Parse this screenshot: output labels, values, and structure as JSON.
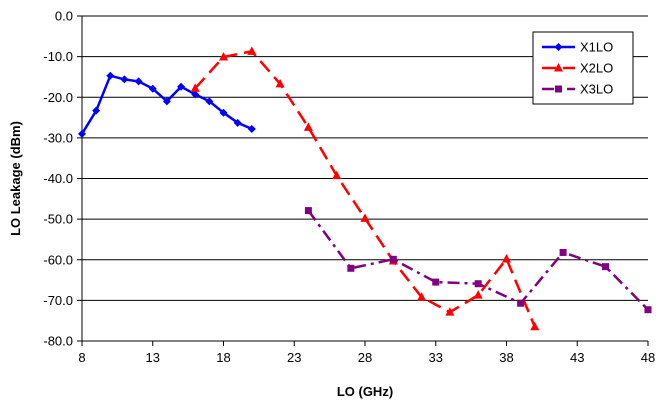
{
  "chart_data": {
    "type": "line",
    "title": "",
    "xlabel": "LO (GHz)",
    "ylabel": "LO Leakage (dBm)",
    "xlim": [
      8,
      48
    ],
    "ylim": [
      -80,
      0
    ],
    "x_ticks": [
      "8",
      "13",
      "18",
      "23",
      "28",
      "33",
      "38",
      "43",
      "48"
    ],
    "y_ticks": [
      "0.0",
      "-10.0",
      "-20.0",
      "-30.0",
      "-40.0",
      "-50.0",
      "-60.0",
      "-70.0",
      "-80.0"
    ],
    "grid": "horizontal",
    "legend_position": "top-right",
    "series": [
      {
        "name": "X1LO",
        "color": "#0000FF",
        "line_style": "solid",
        "marker": "diamond",
        "x": [
          8,
          9,
          10,
          11,
          12,
          13,
          14,
          15,
          16,
          17,
          18,
          19,
          20
        ],
        "y": [
          -29.0,
          -23.3,
          -14.7,
          -15.6,
          -16.1,
          -17.9,
          -21.0,
          -17.4,
          -19.3,
          -21.0,
          -23.8,
          -26.3,
          -27.8
        ]
      },
      {
        "name": "X2LO",
        "color": "#FF0000",
        "line_style": "dashed",
        "marker": "triangle",
        "x": [
          16,
          18,
          20,
          22,
          24,
          26,
          28,
          30,
          32,
          34,
          36,
          38,
          40
        ],
        "y": [
          -17.8,
          -10.1,
          -8.7,
          -16.7,
          -27.4,
          -39.3,
          -49.8,
          -60.3,
          -69.2,
          -72.9,
          -68.7,
          -59.8,
          -76.5
        ]
      },
      {
        "name": "X3LO",
        "color": "#800080",
        "line_style": "dash-dot",
        "marker": "square",
        "x": [
          24,
          27,
          30,
          33,
          36,
          39,
          42,
          45,
          48
        ],
        "y": [
          -47.9,
          -62.1,
          -59.9,
          -65.5,
          -65.9,
          -70.7,
          -58.2,
          -61.7,
          -72.3
        ]
      }
    ]
  }
}
